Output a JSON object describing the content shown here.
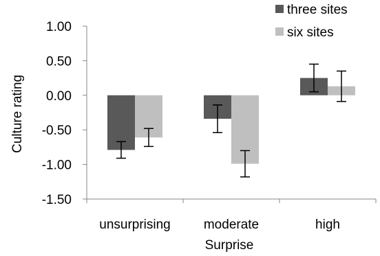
{
  "chart_data": {
    "type": "bar",
    "title": "",
    "xlabel": "Surprise",
    "ylabel": "Culture rating",
    "categories": [
      "unsurprising",
      "moderate",
      "high"
    ],
    "ylim": [
      -1.5,
      1.0
    ],
    "yticks": [
      "1.00",
      "0.50",
      "0.00",
      "-0.50",
      "-1.00",
      "-1.50"
    ],
    "grid": false,
    "legend_position": "top-right",
    "series": [
      {
        "name": "three sites",
        "color": "#595959",
        "values": [
          -0.79,
          -0.34,
          0.25
        ],
        "error": [
          0.12,
          0.2,
          0.2
        ]
      },
      {
        "name": "six sites",
        "color": "#bfbfbf",
        "values": [
          -0.61,
          -0.99,
          0.13
        ],
        "error": [
          0.13,
          0.19,
          0.22
        ]
      }
    ]
  }
}
